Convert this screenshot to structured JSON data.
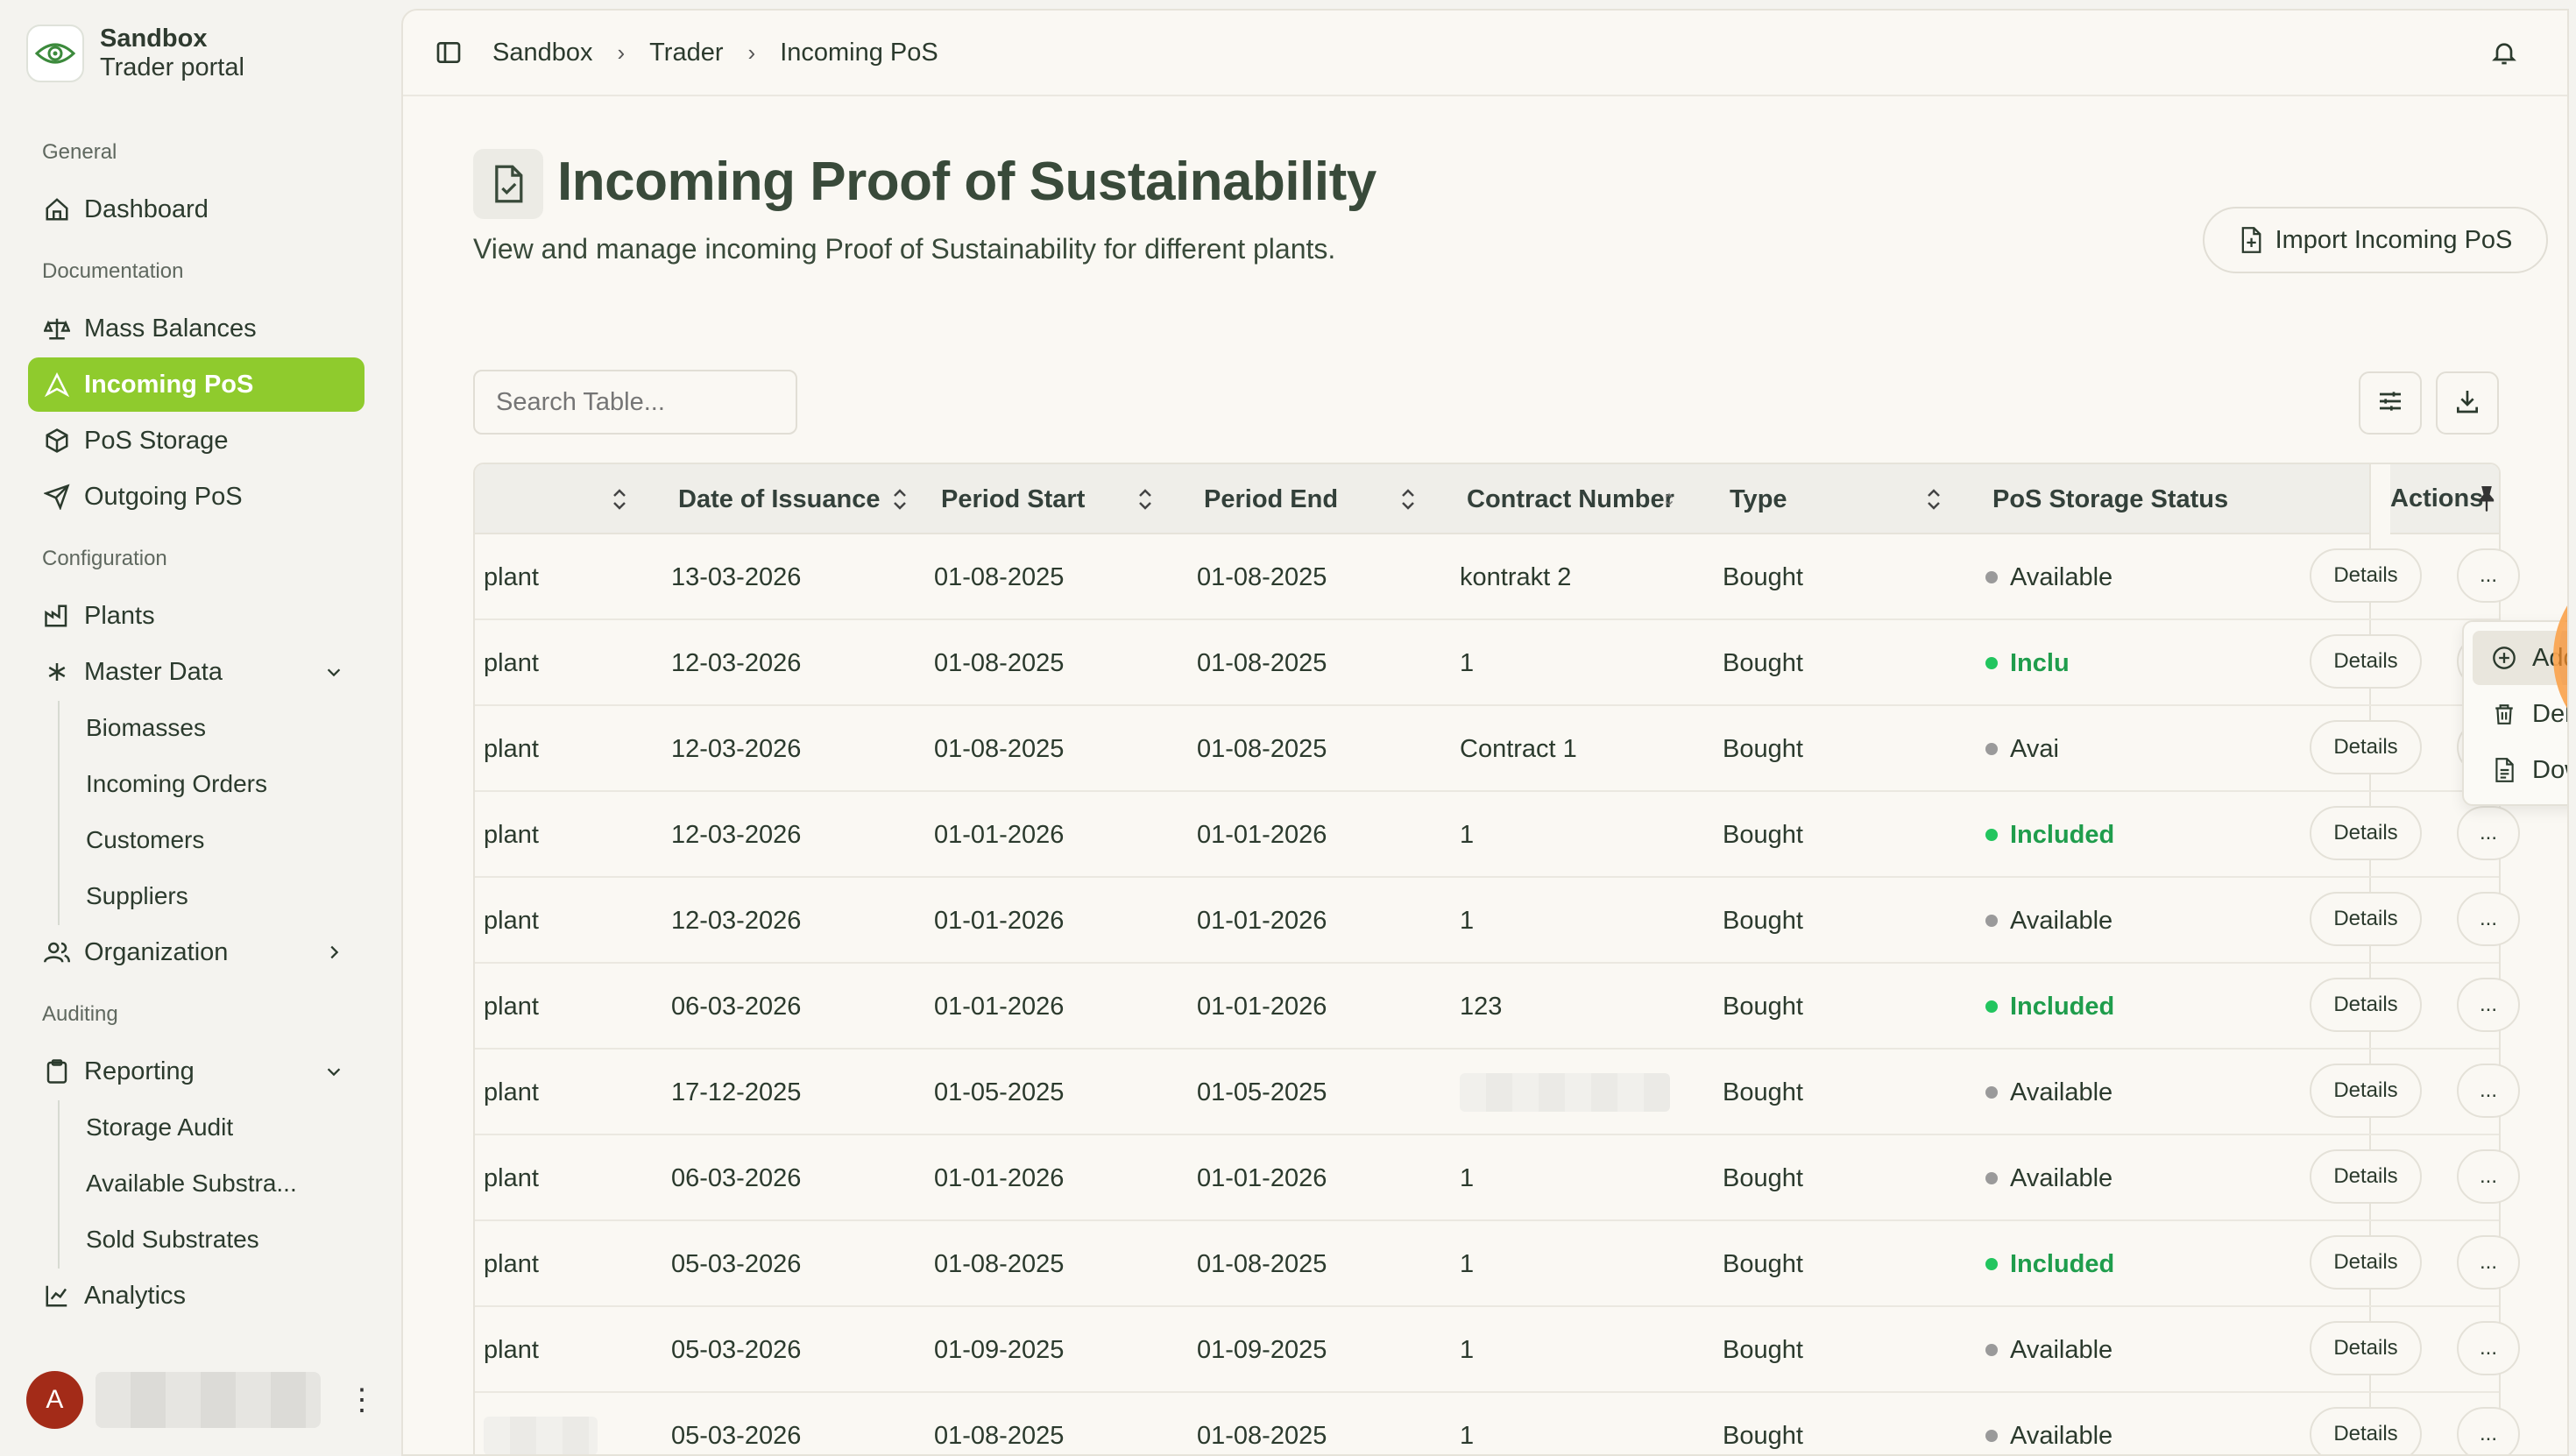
{
  "app": {
    "name": "Sandbox",
    "subtitle": "Trader portal"
  },
  "sidebar": {
    "sections": {
      "general": "General",
      "documentation": "Documentation",
      "configuration": "Configuration",
      "auditing": "Auditing"
    },
    "items": {
      "dashboard": "Dashboard",
      "mass_balances": "Mass Balances",
      "incoming_pos": "Incoming PoS",
      "pos_storage": "PoS Storage",
      "outgoing_pos": "Outgoing PoS",
      "plants": "Plants",
      "master_data": "Master Data",
      "organization": "Organization",
      "reporting": "Reporting",
      "analytics": "Analytics"
    },
    "master_data_children": [
      "Biomasses",
      "Incoming Orders",
      "Customers",
      "Suppliers"
    ],
    "reporting_children": [
      "Storage Audit",
      "Available Substra...",
      "Sold Substrates"
    ],
    "user": {
      "initial": "A"
    }
  },
  "breadcrumb": [
    "Sandbox",
    "Trader",
    "Incoming PoS"
  ],
  "page": {
    "title": "Incoming Proof of Sustainability",
    "description": "View and manage incoming Proof of Sustainability for different plants.",
    "import_button": "Import Incoming PoS",
    "search_placeholder": "Search Table..."
  },
  "table": {
    "headers": {
      "plant": "",
      "date": "Date of Issuance",
      "start": "Period Start",
      "end": "Period End",
      "contract": "Contract Number",
      "type": "Type",
      "status": "PoS Storage Status",
      "actions": "Actions"
    },
    "details_label": "Details",
    "more_label": "...",
    "rows": [
      {
        "plant": "plant",
        "date": "13-03-2026",
        "start": "01-08-2025",
        "end": "01-08-2025",
        "contract": "kontrakt 2",
        "type": "Bought",
        "status": "Available"
      },
      {
        "plant": "plant",
        "date": "12-03-2026",
        "start": "01-08-2025",
        "end": "01-08-2025",
        "contract": "1",
        "type": "Bought",
        "status": "Inclu"
      },
      {
        "plant": "plant",
        "date": "12-03-2026",
        "start": "01-08-2025",
        "end": "01-08-2025",
        "contract": "Contract 1",
        "type": "Bought",
        "status": "Avai"
      },
      {
        "plant": "plant",
        "date": "12-03-2026",
        "start": "01-01-2026",
        "end": "01-01-2026",
        "contract": "1",
        "type": "Bought",
        "status": "Included"
      },
      {
        "plant": "plant",
        "date": "12-03-2026",
        "start": "01-01-2026",
        "end": "01-01-2026",
        "contract": "1",
        "type": "Bought",
        "status": "Available"
      },
      {
        "plant": "plant",
        "date": "06-03-2026",
        "start": "01-01-2026",
        "end": "01-01-2026",
        "contract": "123",
        "type": "Bought",
        "status": "Included"
      },
      {
        "plant": "plant",
        "date": "17-12-2025",
        "start": "01-05-2025",
        "end": "01-05-2025",
        "contract": "",
        "type": "Bought",
        "status": "Available"
      },
      {
        "plant": "plant",
        "date": "06-03-2026",
        "start": "01-01-2026",
        "end": "01-01-2026",
        "contract": "1",
        "type": "Bought",
        "status": "Available"
      },
      {
        "plant": "plant",
        "date": "05-03-2026",
        "start": "01-08-2025",
        "end": "01-08-2025",
        "contract": "1",
        "type": "Bought",
        "status": "Included"
      },
      {
        "plant": "plant",
        "date": "05-03-2026",
        "start": "01-09-2025",
        "end": "01-09-2025",
        "contract": "1",
        "type": "Bought",
        "status": "Available"
      },
      {
        "plant": "",
        "date": "05-03-2026",
        "start": "01-08-2025",
        "end": "01-08-2025",
        "contract": "1",
        "type": "Bought",
        "status": "Available"
      }
    ]
  },
  "context_menu": {
    "items": [
      "Add to PoS Storage",
      "Delete Proof of Sustainability",
      "Download as PDF"
    ]
  },
  "colors": {
    "accent": "#8fcb2d",
    "included": "#22c55e",
    "click_indicator": "#f78c28"
  }
}
